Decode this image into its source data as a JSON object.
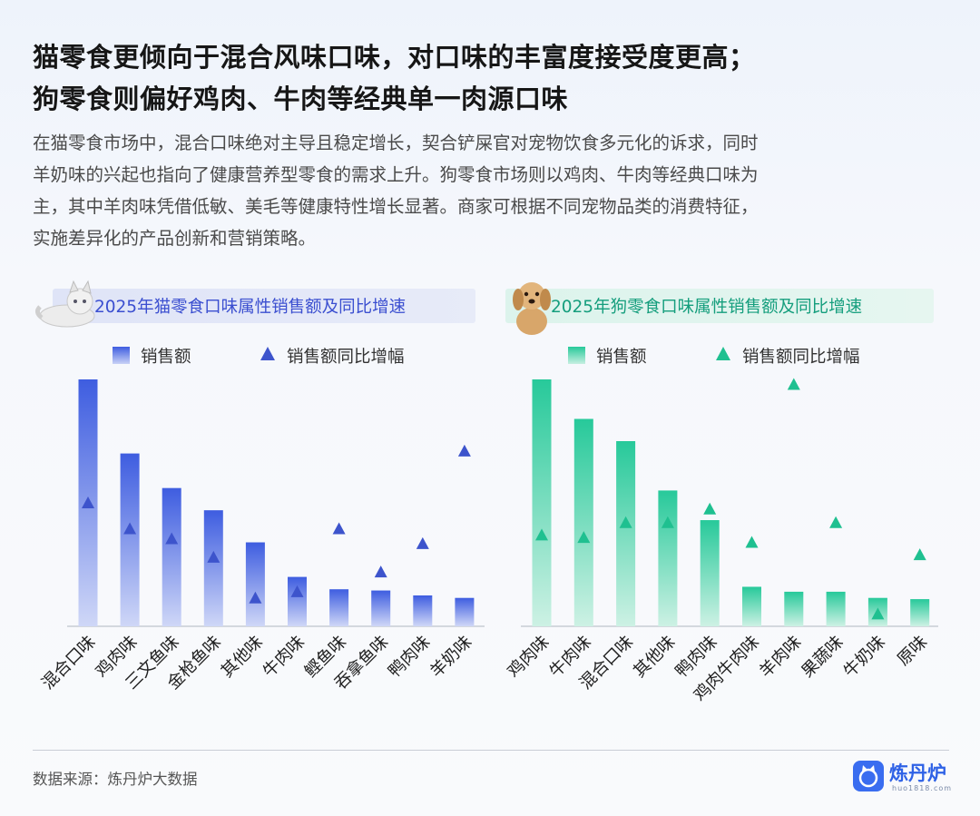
{
  "title_lines": [
    "猫零食更倾向于混合风味口味，对口味的丰富度接受度更高；",
    "狗零食则偏好鸡肉、牛肉等经典单一肉源口味"
  ],
  "description_lines": [
    "在猫零食市场中，混合口味绝对主导且稳定增长，契合铲屎官对宠物饮食多元化的诉求，同时",
    "羊奶味的兴起也指向了健康营养型零食的需求上升。狗零食市场则以鸡肉、牛肉等经典口味为",
    "主，其中羊肉味凭借低敏、美毛等健康特性增长显著。商家可根据不同宠物品类的消费特征，",
    "实施差异化的产品创新和营销策略。"
  ],
  "source": "数据来源：炼丹炉大数据",
  "logo": {
    "name": "炼丹炉",
    "url": "huo1818.com",
    "icon": "cat-face-logo-icon",
    "color": "#3a6df0"
  },
  "colors": {
    "cat_bar": "#3e5de0",
    "cat_triangle": "#3d54cc",
    "dog_bar": "#27c99a",
    "dog_triangle": "#1fc090"
  },
  "chart_data": [
    {
      "type": "bar",
      "title": "2025年猫零食口味属性销售额及同比增速",
      "icon": "cat-icon",
      "legend": {
        "bar": "销售额",
        "marker": "销售额同比增幅"
      },
      "categories": [
        "混合口味",
        "鸡肉味",
        "三文鱼味",
        "金枪鱼味",
        "其他味",
        "牛肉味",
        "鲣鱼味",
        "吞拿鱼味",
        "鸭肉味",
        "羊奶味"
      ],
      "series": [
        {
          "name": "销售额",
          "kind": "bar",
          "values": [
            100,
            70,
            56,
            47,
            34,
            20,
            15,
            14.5,
            12.5,
            11.5
          ]
        },
        {
          "name": "销售额同比增幅",
          "kind": "triangle-marker",
          "values": [
            50,
            39.5,
            35.5,
            28,
            11.5,
            14,
            39.5,
            22,
            33.5,
            71
          ]
        }
      ],
      "ylim": [
        0,
        100
      ],
      "note": "no numeric axis printed; values are relative estimates"
    },
    {
      "type": "bar",
      "title": "2025年狗零食口味属性销售额及同比增速",
      "icon": "dog-icon",
      "legend": {
        "bar": "销售额",
        "marker": "销售额同比增幅"
      },
      "categories": [
        "鸡肉味",
        "牛肉味",
        "混合口味",
        "其他味",
        "鸭肉味",
        "鸡肉牛肉味",
        "羊肉味",
        "果蔬味",
        "牛奶味",
        "原味"
      ],
      "series": [
        {
          "name": "销售额",
          "kind": "bar",
          "values": [
            100,
            84,
            75,
            55,
            43,
            16,
            14,
            14,
            11.5,
            11
          ]
        },
        {
          "name": "销售额同比增幅",
          "kind": "triangle-marker",
          "values": [
            37,
            36,
            42,
            42,
            47.5,
            34,
            98,
            42,
            5,
            29
          ]
        }
      ],
      "ylim": [
        0,
        100
      ],
      "note": "no numeric axis printed; values are relative estimates"
    }
  ]
}
